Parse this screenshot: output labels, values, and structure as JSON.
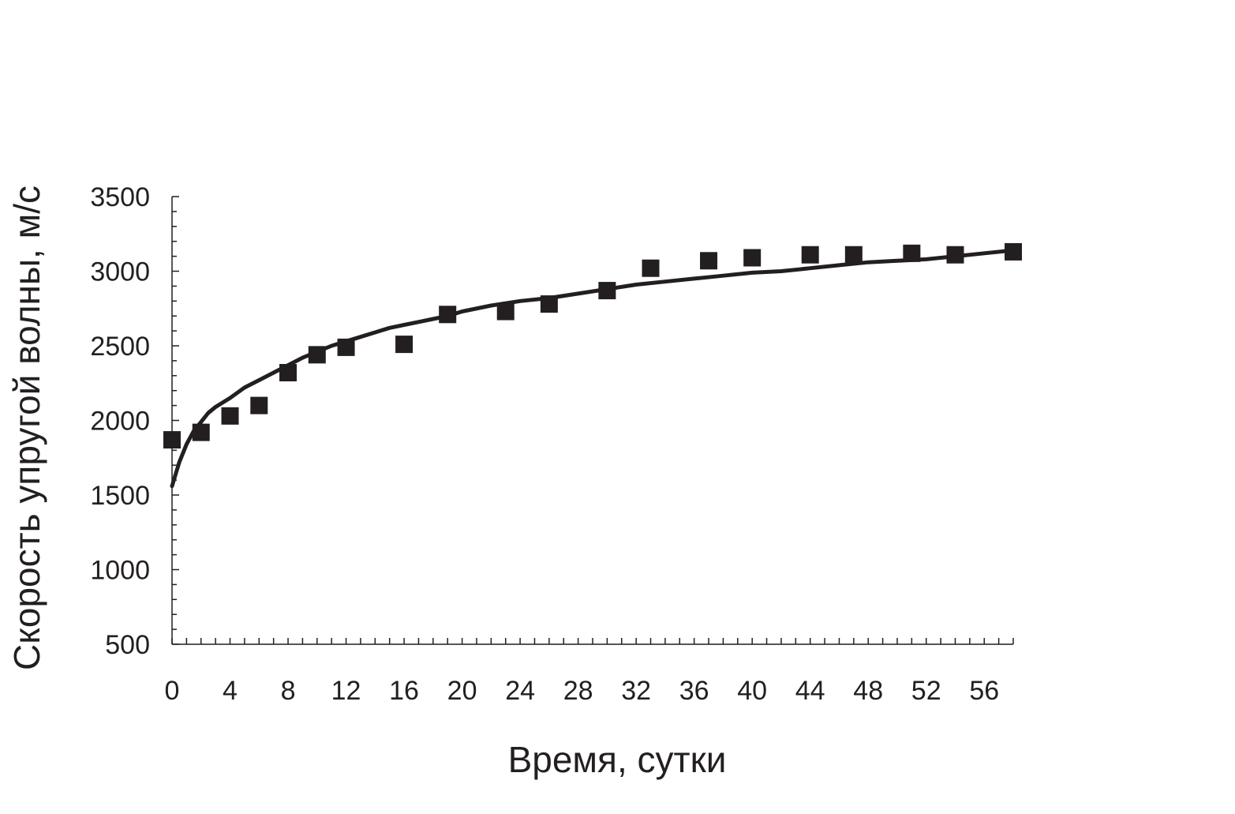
{
  "chart_data": {
    "type": "scatter",
    "title": "",
    "xlabel": "Время, сутки",
    "ylabel": "Скорость упругой волны, м/с",
    "xlim": [
      0,
      58
    ],
    "ylim": [
      500,
      3500
    ],
    "x_ticks": [
      0,
      4,
      8,
      12,
      16,
      20,
      24,
      28,
      32,
      36,
      40,
      44,
      48,
      52,
      56
    ],
    "y_ticks": [
      500,
      1000,
      1500,
      2000,
      2500,
      3000,
      3500
    ],
    "grid": false,
    "legend": "none",
    "colors": {
      "marks": "#231f20",
      "background": "#ffffff"
    },
    "series": [
      {
        "kind": "points",
        "marker": "square",
        "x": [
          0,
          2,
          4,
          6,
          8,
          10,
          12,
          16,
          19,
          23,
          26,
          30,
          33,
          37,
          40,
          44,
          47,
          51,
          54,
          58
        ],
        "y": [
          1870,
          1920,
          2030,
          2100,
          2320,
          2440,
          2490,
          2510,
          2710,
          2730,
          2780,
          2870,
          3020,
          3070,
          3090,
          3110,
          3110,
          3120,
          3110,
          3130
        ]
      },
      {
        "kind": "line",
        "x": [
          0,
          0.5,
          1,
          1.5,
          2,
          2.5,
          3,
          4,
          5,
          6,
          7,
          8,
          9,
          10,
          11,
          12,
          13,
          14,
          15,
          16,
          17,
          18,
          19,
          20,
          22,
          24,
          26,
          28,
          30,
          32,
          34,
          36,
          38,
          40,
          42,
          44,
          46,
          48,
          50,
          52,
          54,
          56,
          58
        ],
        "y": [
          1560,
          1720,
          1840,
          1930,
          1990,
          2050,
          2090,
          2150,
          2220,
          2270,
          2320,
          2370,
          2420,
          2460,
          2500,
          2530,
          2560,
          2590,
          2620,
          2640,
          2660,
          2680,
          2700,
          2730,
          2770,
          2800,
          2820,
          2850,
          2880,
          2910,
          2930,
          2950,
          2970,
          2990,
          3000,
          3020,
          3040,
          3060,
          3070,
          3080,
          3100,
          3120,
          3140
        ]
      }
    ]
  }
}
